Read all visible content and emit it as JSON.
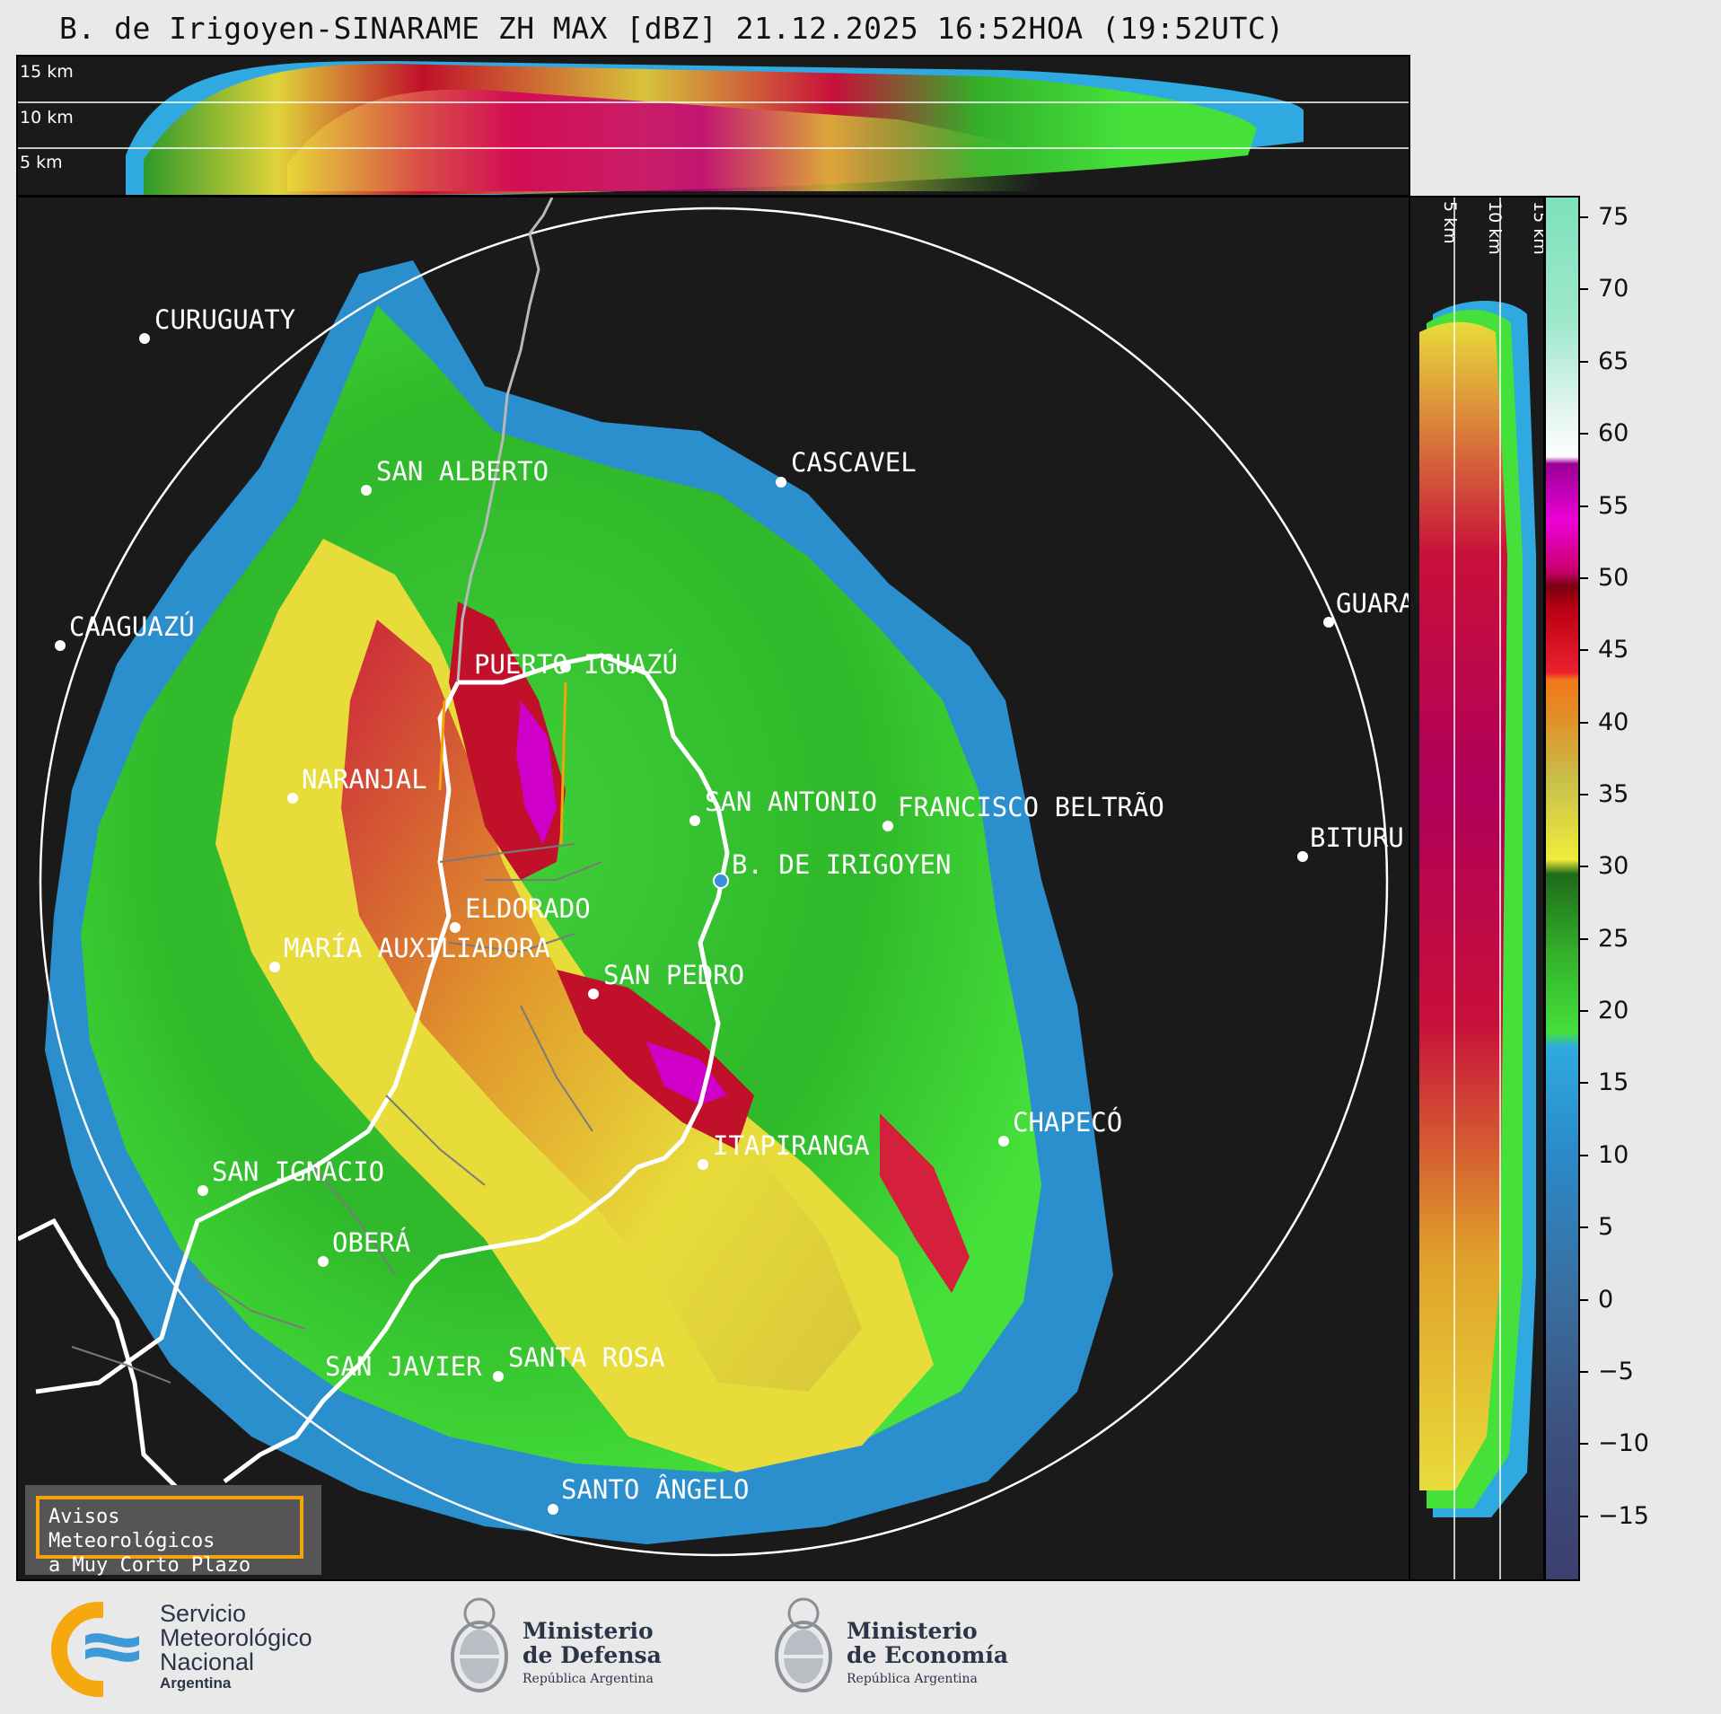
{
  "title": "B. de Irigoyen-SINARAME ZH MAX [dBZ] 21.12.2025 16:52HOA (19:52UTC)",
  "height_labels": [
    "15 km",
    "10 km",
    "5 km"
  ],
  "cities": [
    {
      "name": "CURUGUATY"
    },
    {
      "name": "SAN ALBERTO"
    },
    {
      "name": "CASCAVEL"
    },
    {
      "name": "CAAGUAZÚ"
    },
    {
      "name": "GUARA"
    },
    {
      "name": "PUERTO IGUAZÚ"
    },
    {
      "name": "NARANJAL"
    },
    {
      "name": "SAN ANTONIO"
    },
    {
      "name": "FRANCISCO BELTRÃO"
    },
    {
      "name": "BITURU"
    },
    {
      "name": "B. DE IRIGOYEN"
    },
    {
      "name": "ELDORADO"
    },
    {
      "name": "MARÍA AUXILIADORA"
    },
    {
      "name": "SAN PEDRO"
    },
    {
      "name": "CHAPECÓ"
    },
    {
      "name": "ITAPIRANGA"
    },
    {
      "name": "SAN IGNACIO"
    },
    {
      "name": "OBERÁ"
    },
    {
      "name": "SAN JAVIER"
    },
    {
      "name": "SANTA ROSA"
    },
    {
      "name": "SANTO ÂNGELO"
    }
  ],
  "colorbar": {
    "unit": "dBZ",
    "ticks": [
      "75",
      "70",
      "65",
      "60",
      "55",
      "50",
      "45",
      "40",
      "35",
      "30",
      "25",
      "20",
      "15",
      "10",
      "5",
      "0",
      "−5",
      "−10",
      "−15"
    ],
    "tick_values": [
      75,
      70,
      65,
      60,
      55,
      50,
      45,
      40,
      35,
      30,
      25,
      20,
      15,
      10,
      5,
      0,
      -5,
      -10,
      -15
    ],
    "range": [
      -19.5,
      76.5
    ],
    "stops": [
      {
        "v": -19.5,
        "c": "#3b3f6e"
      },
      {
        "v": -10,
        "c": "#3d4f7c"
      },
      {
        "v": 0,
        "c": "#3a6d9e"
      },
      {
        "v": 10,
        "c": "#2b8ac8"
      },
      {
        "v": 17.5,
        "c": "#2fa9e0"
      },
      {
        "v": 18.5,
        "c": "#45e03a"
      },
      {
        "v": 24,
        "c": "#33b02a"
      },
      {
        "v": 29.5,
        "c": "#1f6a1a"
      },
      {
        "v": 30.5,
        "c": "#f0ec3a"
      },
      {
        "v": 36,
        "c": "#c8c04a"
      },
      {
        "v": 40,
        "c": "#e0922a"
      },
      {
        "v": 43,
        "c": "#f07818"
      },
      {
        "v": 43.5,
        "c": "#ee2030"
      },
      {
        "v": 48,
        "c": "#b80012"
      },
      {
        "v": 49.5,
        "c": "#7a0010"
      },
      {
        "v": 50.5,
        "c": "#c8006a"
      },
      {
        "v": 54,
        "c": "#ee00d8"
      },
      {
        "v": 58,
        "c": "#9a0096"
      },
      {
        "v": 58.5,
        "c": "#ffffff"
      },
      {
        "v": 62,
        "c": "#dff4ec"
      },
      {
        "v": 68,
        "c": "#9ee8cc"
      },
      {
        "v": 76.5,
        "c": "#7fe0bc"
      }
    ]
  },
  "warning_box": {
    "line1": "Avisos Meteorológicos",
    "line2": "a Muy Corto Plazo"
  },
  "logos": {
    "smn": {
      "line1": "Servicio",
      "line2": "Meteorológico",
      "line3": "Nacional",
      "line4": "Argentina"
    },
    "defensa": {
      "line1": "Ministerio",
      "line2": "de Defensa",
      "line3": "República Argentina"
    },
    "economia": {
      "line1": "Ministerio",
      "line2": "de Economía",
      "line3": "República Argentina"
    }
  }
}
